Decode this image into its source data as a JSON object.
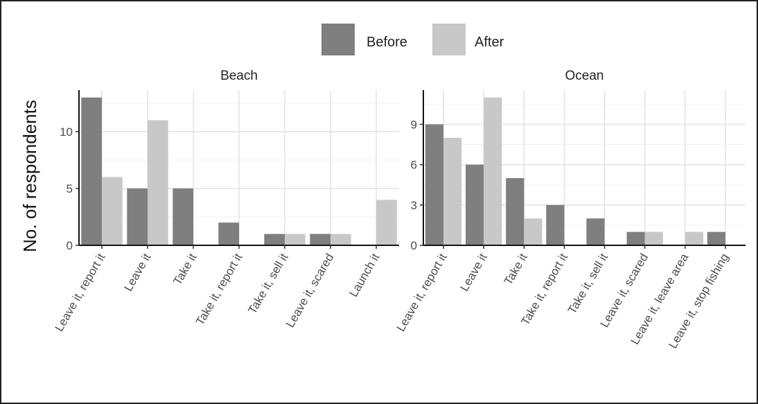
{
  "chart_data": {
    "type": "bar",
    "ylabel": "No. of respondents",
    "legend_position": "top",
    "legend": [
      {
        "name": "Before",
        "color": "#7f7f7f"
      },
      {
        "name": "After",
        "color": "#c8c8c8"
      }
    ],
    "grid": true,
    "panels": [
      {
        "title": "Beach",
        "categories": [
          "Leave it, report it",
          "Leave it",
          "Take it",
          "Take it, report it",
          "Take it, sell it",
          "Leave it, scared",
          "Launch it"
        ],
        "ylim": [
          0,
          13.65
        ],
        "yticks": [
          0,
          5,
          10
        ],
        "series": [
          {
            "name": "Before",
            "values": [
              13,
              5,
              5,
              2,
              1,
              1,
              0
            ]
          },
          {
            "name": "After",
            "values": [
              6,
              11,
              0,
              0,
              1,
              1,
              4
            ]
          }
        ]
      },
      {
        "title": "Ocean",
        "categories": [
          "Leave it, report it",
          "Leave it",
          "Take it",
          "Take it, report it",
          "Take it, sell it",
          "Leave it, scared",
          "Leave it, leave area",
          "Leave it, stop fishing"
        ],
        "ylim": [
          0,
          11.55
        ],
        "yticks": [
          0,
          3,
          6,
          9
        ],
        "series": [
          {
            "name": "Before",
            "values": [
              9,
              6,
              5,
              3,
              2,
              1,
              0,
              1
            ]
          },
          {
            "name": "After",
            "values": [
              8,
              11,
              2,
              0,
              0,
              1,
              1,
              0
            ]
          }
        ]
      }
    ]
  }
}
